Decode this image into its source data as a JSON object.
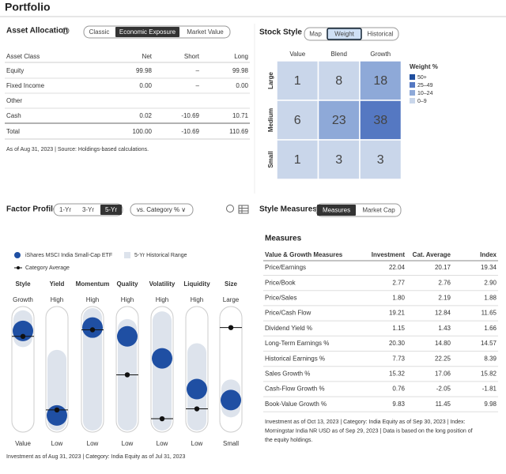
{
  "header": {
    "title": "Portfolio"
  },
  "asset_allocation": {
    "title": "Asset Allocation",
    "tabs": [
      "Classic",
      "Economic Exposure",
      "Market Value"
    ],
    "active_tab": 1,
    "columns": [
      "Asset Class",
      "Net",
      "Short",
      "Long"
    ],
    "rows": [
      [
        "Equity",
        "99.98",
        "–",
        "99.98"
      ],
      [
        "Fixed Income",
        "0.00",
        "–",
        "0.00"
      ],
      [
        "Other",
        "",
        "",
        ""
      ],
      [
        "Cash",
        "0.02",
        "-10.69",
        "10.71"
      ]
    ],
    "total": [
      "Total",
      "100.00",
      "-10.69",
      "110.69"
    ],
    "note": "As of Aug 31, 2023 | Source: Holdings-based calculations."
  },
  "stock_style": {
    "title": "Stock Style",
    "tabs": [
      "Map",
      "Weight",
      "Historical"
    ],
    "active_tab": 1,
    "columns": [
      "Value",
      "Blend",
      "Growth"
    ],
    "rows": [
      "Large",
      "Medium",
      "Small"
    ],
    "cells": [
      [
        {
          "value": 1,
          "color": "#c9d6ea"
        },
        {
          "value": 8,
          "color": "#c9d6ea"
        },
        {
          "value": 18,
          "color": "#8ea9d8"
        }
      ],
      [
        {
          "value": 6,
          "color": "#c9d6ea"
        },
        {
          "value": 23,
          "color": "#8ea9d8"
        },
        {
          "value": 38,
          "color": "#5578c2"
        }
      ],
      [
        {
          "value": 1,
          "color": "#c9d6ea"
        },
        {
          "value": 3,
          "color": "#c9d6ea"
        },
        {
          "value": 3,
          "color": "#c9d6ea"
        }
      ]
    ],
    "legend": {
      "title": "Weight %",
      "items": [
        {
          "label": "50+",
          "color": "#1f4e9e"
        },
        {
          "label": "25–49",
          "color": "#5578c2"
        },
        {
          "label": "10–24",
          "color": "#8ea9d8"
        },
        {
          "label": "0–9",
          "color": "#c9d6ea"
        }
      ]
    }
  },
  "factor_profile": {
    "title": "Factor Profile",
    "periods": [
      "1-Yr",
      "3-Yr",
      "5-Yr"
    ],
    "active_period": 2,
    "dropdown": "vs. Category % ∨",
    "legend": {
      "fund": "iShares MSCI India Small-Cap ETF",
      "range": "5-Yr Historical Range",
      "category": "Category Average"
    },
    "factors": [
      {
        "name": "Style",
        "top": "Growth",
        "bottom": "Value",
        "fund": 85,
        "category": 80,
        "range": [
          76,
          98
        ]
      },
      {
        "name": "Yield",
        "top": "High",
        "bottom": "Low",
        "fund": 8,
        "category": 13,
        "range": [
          0,
          62
        ]
      },
      {
        "name": "Momentum",
        "top": "High",
        "bottom": "Low",
        "fund": 88,
        "category": 86,
        "range": [
          0,
          100
        ]
      },
      {
        "name": "Quality",
        "top": "High",
        "bottom": "Low",
        "fund": 80,
        "category": 45,
        "range": [
          0,
          90
        ]
      },
      {
        "name": "Volatility",
        "top": "High",
        "bottom": "Low",
        "fund": 60,
        "category": 5,
        "range": [
          0,
          97
        ]
      },
      {
        "name": "Liquidity",
        "top": "High",
        "bottom": "Low",
        "fund": 32,
        "category": 14,
        "range": [
          0,
          68
        ]
      },
      {
        "name": "Size",
        "top": "Large",
        "bottom": "Small",
        "fund": 22,
        "category": 88,
        "range": [
          12,
          35
        ]
      }
    ],
    "note": "Investment as of Aug 31, 2023 | Category: India Equity as of Jul 31, 2023"
  },
  "style_measures": {
    "title": "Style Measures",
    "tabs": [
      "Measures",
      "Market Cap"
    ],
    "active_tab": 0,
    "subtitle": "Measures",
    "columns": [
      "Value & Growth Measures",
      "Investment",
      "Cat. Average",
      "Index"
    ],
    "rows": [
      [
        "Price/Earnings",
        "22.04",
        "20.17",
        "19.34"
      ],
      [
        "Price/Book",
        "2.77",
        "2.76",
        "2.90"
      ],
      [
        "Price/Sales",
        "1.80",
        "2.19",
        "1.88"
      ],
      [
        "Price/Cash Flow",
        "19.21",
        "12.84",
        "11.65"
      ],
      [
        "Dividend Yield %",
        "1.15",
        "1.43",
        "1.66"
      ],
      [
        "Long-Term Earnings %",
        "20.30",
        "14.80",
        "14.57"
      ],
      [
        "Historical Earnings %",
        "7.73",
        "22.25",
        "8.39"
      ],
      [
        "Sales Growth %",
        "15.32",
        "17.06",
        "15.82"
      ],
      [
        "Cash-Flow Growth %",
        "0.76",
        "-2.05",
        "-1.81"
      ],
      [
        "Book-Value Growth %",
        "9.83",
        "11.45",
        "9.98"
      ]
    ],
    "note": [
      "Investment as of Oct 13, 2023 | Category: India Equity as of Sep 30, 2023 | Index:",
      "Morningstar India NR USD as of Sep 29, 2023 | Data is based on the long position of",
      "the equity holdings."
    ]
  }
}
